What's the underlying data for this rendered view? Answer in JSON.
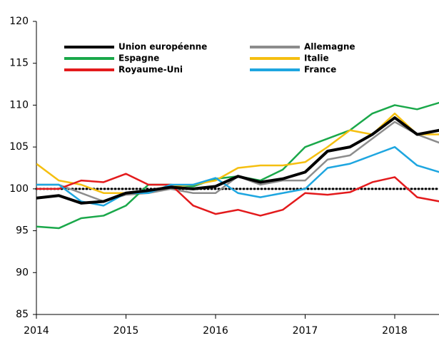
{
  "chart_data": {
    "type": "line",
    "x": [
      2014,
      2014.25,
      2014.5,
      2014.75,
      2015,
      2015.25,
      2015.5,
      2015.75,
      2016,
      2016.25,
      2016.5,
      2016.75,
      2017,
      2017.25,
      2017.5,
      2017.75,
      2018,
      2018.25,
      2018.5
    ],
    "series": [
      {
        "name": "Union européenne",
        "color": "#000000",
        "values": [
          98.9,
          99.2,
          98.3,
          98.5,
          99.5,
          99.8,
          100.2,
          100,
          100.3,
          101.5,
          100.8,
          101.2,
          102,
          104.5,
          105,
          106.5,
          108.5,
          106.5,
          107
        ]
      },
      {
        "name": "Allemagne",
        "color": "#8c8c8c",
        "values": [
          100.5,
          100.5,
          99.5,
          98.5,
          99.3,
          99.5,
          100,
          99.5,
          99.5,
          101.5,
          100.5,
          101,
          101,
          103.5,
          104,
          106,
          108,
          106.5,
          105.5
        ]
      },
      {
        "name": "Espagne",
        "color": "#1aa84a",
        "values": [
          95.5,
          95.3,
          96.5,
          96.8,
          98,
          100.5,
          100.5,
          100.3,
          101.2,
          101.5,
          101,
          102.3,
          105,
          106,
          107,
          109,
          110,
          109.5,
          110.3
        ]
      },
      {
        "name": "Italie",
        "color": "#f5bf10",
        "values": [
          103,
          101,
          100.5,
          99.5,
          99.5,
          99.8,
          100.3,
          100.5,
          101,
          102.5,
          102.8,
          102.8,
          103.2,
          105,
          107,
          106.5,
          109,
          106.5,
          106.5
        ]
      },
      {
        "name": "Royaume-Uni",
        "color": "#e31a1c",
        "values": [
          100,
          100,
          101,
          100.8,
          101.8,
          100.5,
          100.5,
          98,
          97,
          97.5,
          96.8,
          97.5,
          99.5,
          99.3,
          99.6,
          100.8,
          101.4,
          99,
          98.5
        ]
      },
      {
        "name": "France",
        "color": "#1ea6e0",
        "values": [
          100.5,
          100.5,
          98.5,
          98,
          99.5,
          99.5,
          100.5,
          100.5,
          101.3,
          99.5,
          99,
          99.5,
          100,
          102.5,
          103,
          104,
          105,
          102.8,
          102
        ]
      }
    ],
    "xlim": [
      2014,
      2018.5
    ],
    "xticks": [
      2014,
      2015,
      2016,
      2017,
      2018
    ],
    "ylim": [
      85,
      120
    ],
    "yticks": [
      85,
      90,
      95,
      100,
      105,
      110,
      115,
      120
    ],
    "reference_line": 100,
    "legend": "upper left",
    "grid": false
  }
}
